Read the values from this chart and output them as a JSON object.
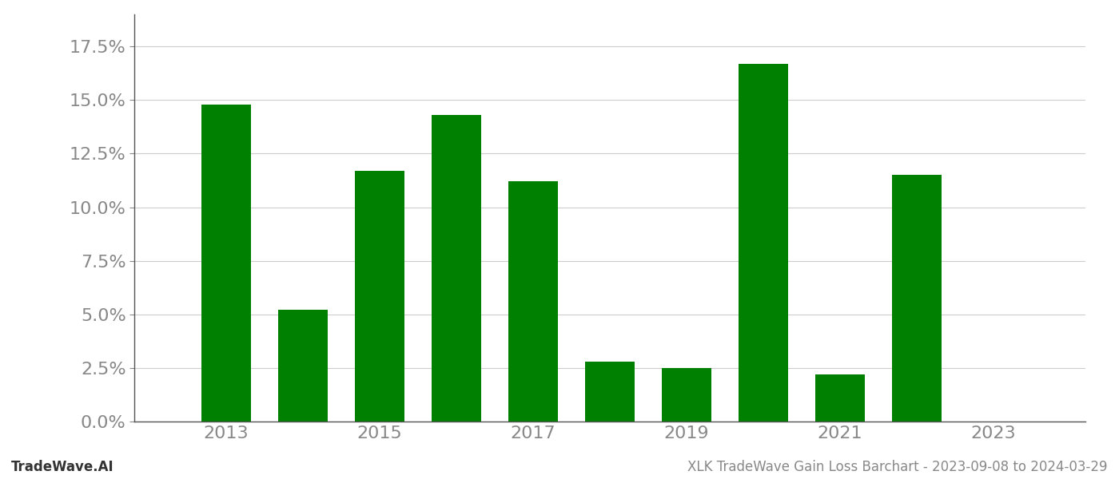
{
  "years": [
    2013,
    2014,
    2015,
    2016,
    2017,
    2018,
    2019,
    2020,
    2021,
    2022
  ],
  "values": [
    0.148,
    0.052,
    0.117,
    0.143,
    0.112,
    0.028,
    0.025,
    0.167,
    0.022,
    0.115
  ],
  "bar_color": "#008000",
  "background_color": "#ffffff",
  "ylim": [
    0,
    0.19
  ],
  "yticks": [
    0.0,
    0.025,
    0.05,
    0.075,
    0.1,
    0.125,
    0.15,
    0.175
  ],
  "xtick_labels": [
    "2013",
    "2015",
    "2017",
    "2019",
    "2021",
    "2023"
  ],
  "xtick_positions": [
    2013,
    2015,
    2017,
    2019,
    2021,
    2023
  ],
  "grid_color": "#cccccc",
  "axis_color": "#555555",
  "tick_color": "#888888",
  "footer_left": "TradeWave.AI",
  "footer_right": "XLK TradeWave Gain Loss Barchart - 2023-09-08 to 2024-03-29",
  "footer_fontsize": 12,
  "ytick_fontsize": 16,
  "xtick_fontsize": 16,
  "bar_width": 0.65,
  "xlim_left": 2011.8,
  "xlim_right": 2024.2
}
